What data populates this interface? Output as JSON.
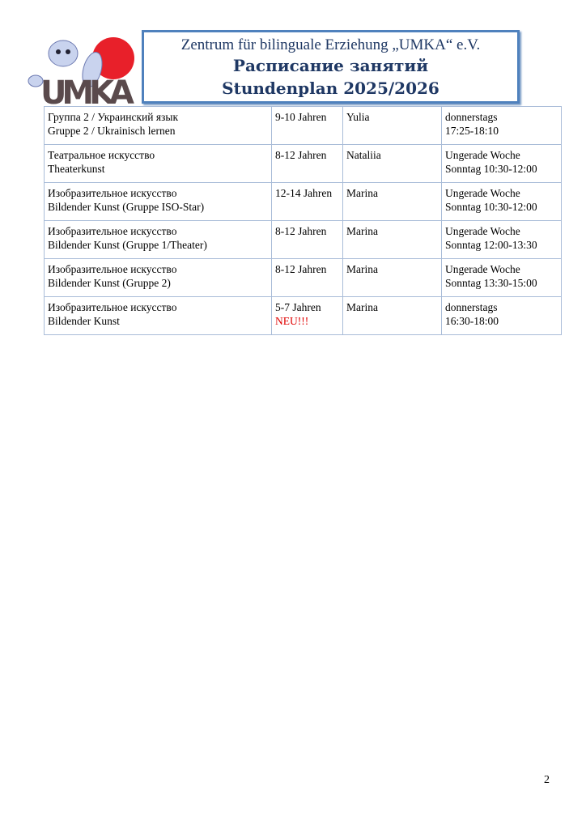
{
  "header": {
    "org": "Zentrum für bilinguale Erziehung „UMKA“ e.V.",
    "title_ru": "Расписание занятий",
    "title_de": "Stundenplan 2025/2026",
    "logo_text": "UMKA"
  },
  "rows": [
    {
      "course_ru": "Группа 2 / Украинский язык",
      "course_de": "Gruppe 2 / Ukrainisch lernen",
      "age": "9-10 Jahren",
      "note": "",
      "teacher": "Yulia",
      "when1": "donnerstags",
      "when2": "17:25-18:10"
    },
    {
      "course_ru": "Театральное искусство",
      "course_de": "Theaterkunst",
      "age": "8-12 Jahren",
      "note": "",
      "teacher": "Nataliia",
      "when1": "Ungerade Woche",
      "when2": "Sonntag 10:30-12:00"
    },
    {
      "course_ru": "Изобразительное искусство",
      "course_de": "Bildender Kunst (Gruppe ISO-Star)",
      "age": "12-14 Jahren",
      "note": "",
      "teacher": "Marina",
      "when1": "Ungerade Woche",
      "when2": "Sonntag 10:30-12:00"
    },
    {
      "course_ru": "Изобразительное искусство",
      "course_de": "Bildender Kunst (Gruppe 1/Theater)",
      "age": "8-12 Jahren",
      "note": "",
      "teacher": "Marina",
      "when1": "Ungerade Woche",
      "when2": "Sonntag 12:00-13:30"
    },
    {
      "course_ru": "Изобразительное искусство",
      "course_de": "Bildender Kunst (Gruppe 2)",
      "age": "8-12 Jahren",
      "note": "",
      "teacher": "Marina",
      "when1": "Ungerade Woche",
      "when2": "Sonntag 13:30-15:00"
    },
    {
      "course_ru": "Изобразительное искусство",
      "course_de": "Bildender Kunst",
      "age": "5-7 Jahren",
      "note": "NEU!!!",
      "teacher": "Marina",
      "when1": "donnerstags",
      "when2": "16:30-18:00"
    }
  ],
  "page_number": "2",
  "colors": {
    "title": "#1f3864",
    "border": "#4f81bd",
    "new": "#e00000"
  }
}
